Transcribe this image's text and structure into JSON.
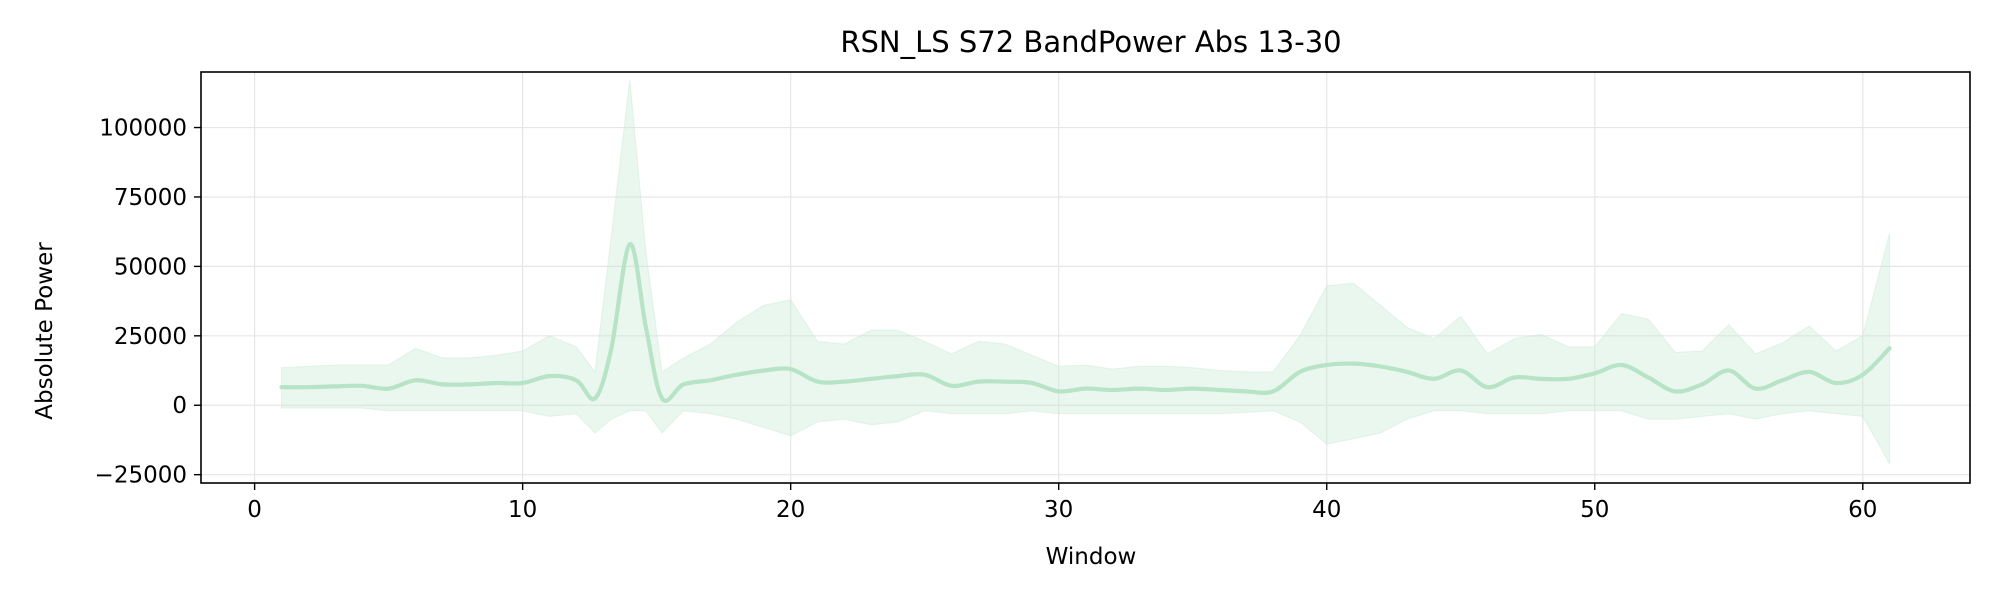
{
  "chart_data": {
    "type": "line",
    "title": "RSN_LS S72 BandPower Abs 13-30",
    "xlabel": "Window",
    "ylabel": "Absolute Power",
    "xlim": [
      -2,
      64
    ],
    "ylim": [
      -28000,
      120000
    ],
    "xticks": [
      0,
      10,
      20,
      30,
      40,
      50,
      60
    ],
    "yticks": [
      -25000,
      0,
      25000,
      50000,
      75000,
      100000
    ],
    "ytick_labels": [
      "−25000",
      "0",
      "25000",
      "50000",
      "75000",
      "100000"
    ],
    "grid": true,
    "legend": "none",
    "series": [
      {
        "color": "#b7e3c7",
        "band_color": "#c9ebd5",
        "x": [
          1,
          2,
          3,
          4,
          5,
          6,
          7,
          8,
          9,
          10,
          11,
          12,
          12.7,
          13.3,
          14,
          14.6,
          15.2,
          16,
          17,
          18,
          19,
          20,
          21,
          22,
          23,
          24,
          25,
          26,
          27,
          28,
          29,
          30,
          31,
          32,
          33,
          34,
          35,
          36,
          37,
          38,
          39,
          40,
          41,
          42,
          43,
          44,
          45,
          46,
          47,
          48,
          49,
          50,
          51,
          52,
          53,
          54,
          55,
          56,
          57,
          58,
          59,
          60,
          61
        ],
        "mean": [
          6500,
          6500,
          6800,
          7000,
          6000,
          9000,
          7500,
          7500,
          8000,
          8000,
          10500,
          9000,
          2500,
          20000,
          58000,
          28000,
          2500,
          7500,
          9000,
          11000,
          12500,
          13000,
          8500,
          8500,
          9500,
          10500,
          11000,
          7000,
          8500,
          8500,
          8000,
          5000,
          6000,
          5500,
          6000,
          5500,
          6000,
          5500,
          5000,
          5000,
          12000,
          14500,
          15000,
          14000,
          12000,
          9500,
          12500,
          6500,
          10000,
          9500,
          9500,
          11500,
          14500,
          10000,
          5000,
          7500,
          12500,
          6000,
          9000,
          12000,
          8000,
          11000,
          20500
        ],
        "upper": [
          13500,
          14000,
          14500,
          14500,
          14500,
          20500,
          17000,
          17000,
          18000,
          19500,
          25000,
          21000,
          12000,
          60000,
          117000,
          55000,
          12000,
          17000,
          22000,
          30000,
          36000,
          38000,
          23000,
          22000,
          27000,
          27000,
          23000,
          18500,
          23000,
          22000,
          18000,
          14000,
          14500,
          13000,
          14000,
          14000,
          13500,
          12500,
          12000,
          12000,
          25000,
          43000,
          44000,
          36000,
          28000,
          24000,
          32000,
          18500,
          24000,
          25500,
          21000,
          21000,
          33000,
          31000,
          19000,
          19500,
          29000,
          18500,
          22500,
          28500,
          19500,
          25000,
          62000
        ],
        "lower": [
          -1000,
          -1000,
          -1000,
          -1000,
          -2000,
          -2000,
          -2000,
          -2000,
          -2000,
          -2000,
          -4000,
          -3000,
          -10000,
          -5000,
          -2000,
          -2000,
          -10000,
          -2000,
          -3000,
          -5000,
          -8000,
          -11000,
          -6000,
          -5000,
          -7000,
          -6000,
          -2000,
          -3000,
          -3000,
          -3000,
          -2000,
          -3000,
          -3000,
          -3000,
          -3000,
          -3000,
          -3000,
          -3000,
          -2500,
          -2000,
          -6000,
          -14000,
          -12000,
          -10000,
          -5000,
          -2000,
          -2000,
          -3000,
          -3000,
          -3000,
          -2000,
          -2000,
          -2000,
          -5000,
          -5000,
          -4000,
          -3000,
          -5000,
          -3000,
          -2000,
          -3000,
          -4000,
          -21000
        ]
      }
    ]
  }
}
